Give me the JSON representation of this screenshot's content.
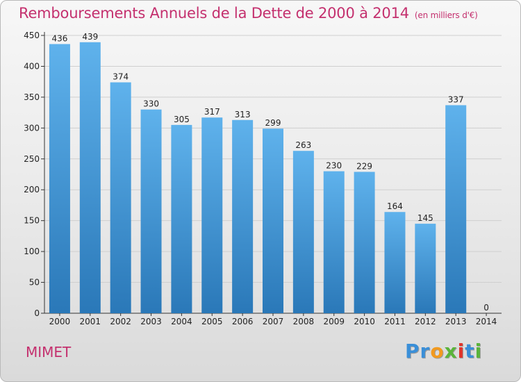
{
  "chart_data": {
    "type": "bar",
    "title": "Remboursements Annuels de la Dette de 2000 à 2014",
    "subtitle": "(en milliers d'€)",
    "categories": [
      "2000",
      "2001",
      "2002",
      "2003",
      "2004",
      "2005",
      "2006",
      "2007",
      "2008",
      "2009",
      "2010",
      "2011",
      "2012",
      "2013",
      "2014"
    ],
    "values": [
      436,
      439,
      374,
      330,
      305,
      317,
      313,
      299,
      263,
      230,
      229,
      164,
      145,
      337,
      0
    ],
    "ylim": [
      0,
      450
    ],
    "yticks": [
      0,
      50,
      100,
      150,
      200,
      250,
      300,
      350,
      400,
      450
    ],
    "grid": "horizontal",
    "bar_color_top": "#5fb2ec",
    "bar_color_bottom": "#2a78b8",
    "xlabel": "",
    "ylabel": ""
  },
  "footer": {
    "commune": "MIMET",
    "logo_letters": [
      "P",
      "r",
      "o",
      "x",
      "i",
      "t",
      "i"
    ],
    "logo_colors": [
      "#3a8fd8",
      "#3a8fd8",
      "#f29a1f",
      "#5ab43a",
      "#e0342b",
      "#3a8fd8",
      "#5ab43a"
    ]
  },
  "colors": {
    "title": "#c4306e",
    "axis": "#333333",
    "grid": "#cfcfcf"
  }
}
